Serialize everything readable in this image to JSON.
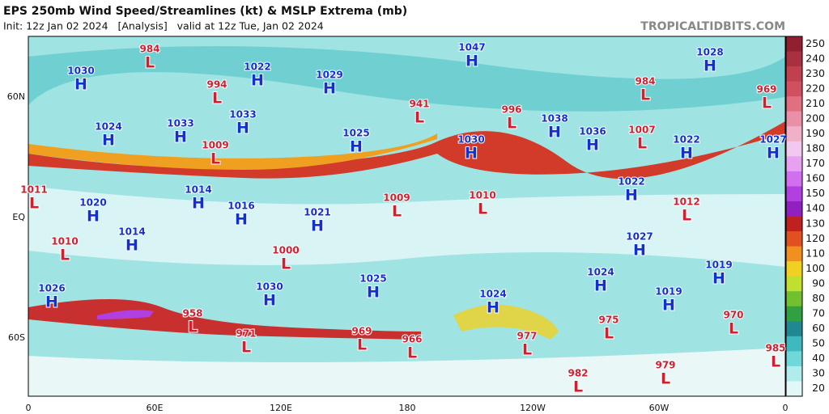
{
  "header": {
    "title": "EPS 250mb Wind Speed/Streamlines (kt) & MSLP Extrema (mb)",
    "subtitle": "Init: 12z Jan 02 2024   [Analysis]   valid at 12z Tue, Jan 02 2024",
    "site": "TROPICALTIDBITS.COM"
  },
  "x_labels": [
    "0",
    "60E",
    "120E",
    "180",
    "120W",
    "60W",
    "0"
  ],
  "y_labels": [
    "60N",
    "EQ",
    "60S"
  ],
  "colorbar": {
    "labels": [
      250,
      240,
      230,
      220,
      210,
      200,
      190,
      180,
      170,
      160,
      150,
      140,
      130,
      120,
      110,
      100,
      90,
      80,
      70,
      60,
      50,
      40,
      30,
      20
    ],
    "colors": [
      "#902030",
      "#a83040",
      "#c04050",
      "#d05060",
      "#e07080",
      "#e890a8",
      "#f0b0c8",
      "#f0c8f0",
      "#e8a0f0",
      "#d070f0",
      "#b040e0",
      "#9020c0",
      "#c02020",
      "#e05020",
      "#f09020",
      "#f0d020",
      "#c0e030",
      "#70c030",
      "#30a040",
      "#208890",
      "#40b8c0",
      "#70d8d8",
      "#b0ecec",
      "#e0f8f8"
    ]
  },
  "centers": [
    {
      "type": "L",
      "pressure": 984
    },
    {
      "type": "H",
      "pressure": 1030
    },
    {
      "type": "H",
      "pressure": 1022
    },
    {
      "type": "H",
      "pressure": 1029
    },
    {
      "type": "H",
      "pressure": 1047
    },
    {
      "type": "H",
      "pressure": 1028
    },
    {
      "type": "L",
      "pressure": 994
    },
    {
      "type": "L",
      "pressure": 984
    },
    {
      "type": "L",
      "pressure": 969
    },
    {
      "type": "L",
      "pressure": 941
    },
    {
      "type": "L",
      "pressure": 996
    },
    {
      "type": "H",
      "pressure": 1033
    },
    {
      "type": "H",
      "pressure": 1024
    },
    {
      "type": "H",
      "pressure": 1033
    },
    {
      "type": "H",
      "pressure": 1038
    },
    {
      "type": "H",
      "pressure": 1036
    },
    {
      "type": "L",
      "pressure": 1007
    },
    {
      "type": "H",
      "pressure": 1025
    },
    {
      "type": "H",
      "pressure": 1030
    },
    {
      "type": "H",
      "pressure": 1022
    },
    {
      "type": "H",
      "pressure": 1027
    },
    {
      "type": "L",
      "pressure": 1009
    },
    {
      "type": "L",
      "pressure": 1011
    },
    {
      "type": "H",
      "pressure": 1014
    },
    {
      "type": "H",
      "pressure": 1022
    },
    {
      "type": "L",
      "pressure": 1009
    },
    {
      "type": "L",
      "pressure": 1010
    },
    {
      "type": "L",
      "pressure": 1012
    },
    {
      "type": "H",
      "pressure": 1020
    },
    {
      "type": "H",
      "pressure": 1016
    },
    {
      "type": "H",
      "pressure": 1021
    },
    {
      "type": "H",
      "pressure": 1014
    },
    {
      "type": "L",
      "pressure": 1010
    },
    {
      "type": "H",
      "pressure": 1027
    },
    {
      "type": "L",
      "pressure": 1000
    },
    {
      "type": "H",
      "pressure": 1019
    },
    {
      "type": "H",
      "pressure": 1024
    },
    {
      "type": "H",
      "pressure": 1025
    },
    {
      "type": "H",
      "pressure": 1026
    },
    {
      "type": "H",
      "pressure": 1030
    },
    {
      "type": "H",
      "pressure": 1024
    },
    {
      "type": "H",
      "pressure": 1019
    },
    {
      "type": "L",
      "pressure": 958
    },
    {
      "type": "L",
      "pressure": 970
    },
    {
      "type": "L",
      "pressure": 975
    },
    {
      "type": "L",
      "pressure": 971
    },
    {
      "type": "L",
      "pressure": 969
    },
    {
      "type": "L",
      "pressure": 966
    },
    {
      "type": "L",
      "pressure": 977
    },
    {
      "type": "L",
      "pressure": 985
    },
    {
      "type": "L",
      "pressure": 979
    },
    {
      "type": "L",
      "pressure": 982
    }
  ]
}
